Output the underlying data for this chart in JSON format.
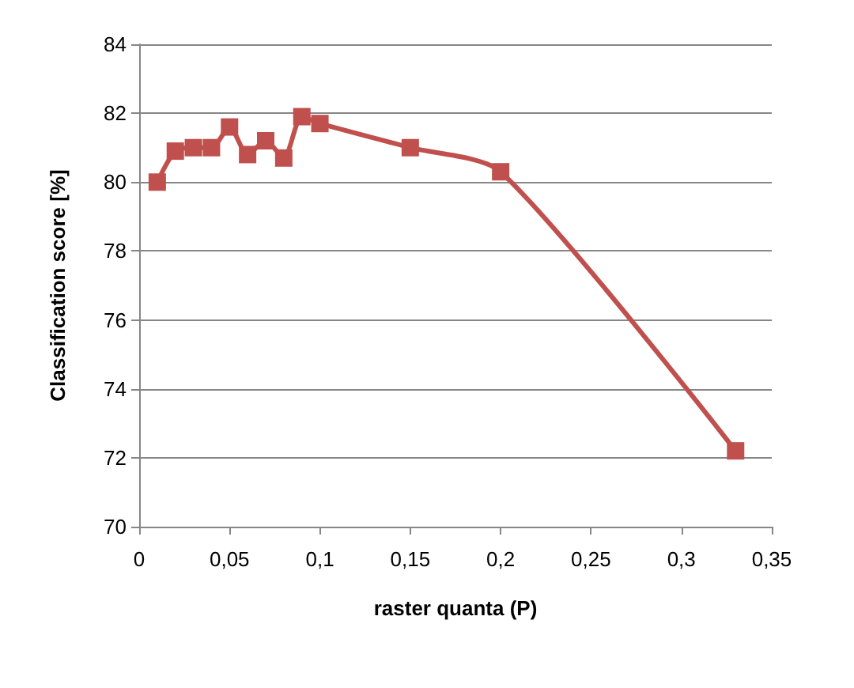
{
  "chart_data": {
    "type": "line",
    "xlabel": "raster quanta (P)",
    "ylabel": "Classification score [%]",
    "x": [
      0.01,
      0.02,
      0.03,
      0.04,
      0.05,
      0.06,
      0.07,
      0.08,
      0.09,
      0.1,
      0.15,
      0.2,
      0.33
    ],
    "series": [
      {
        "color": "#c0504d",
        "values": [
          80.0,
          80.9,
          81.0,
          81.0,
          81.6,
          80.8,
          81.2,
          80.7,
          81.9,
          81.7,
          81.0,
          80.3,
          72.2
        ]
      }
    ],
    "xlim": [
      0,
      0.35
    ],
    "xticks": [
      0,
      {
        "value": 0.05,
        "label": "0,05"
      },
      {
        "value": 0.1,
        "label": "0,1"
      },
      {
        "value": 0.15,
        "label": "0,15"
      },
      {
        "value": 0.2,
        "label": "0,2"
      },
      {
        "value": 0.25,
        "label": "0,25"
      },
      {
        "value": 0.3,
        "label": "0,3"
      },
      {
        "value": 0.35,
        "label": "0,35"
      }
    ],
    "ylim": [
      70,
      84
    ],
    "yticks": [
      70,
      72,
      74,
      76,
      78,
      80,
      82,
      84
    ],
    "grid": "y",
    "marker": "square",
    "line_style": "solid"
  }
}
